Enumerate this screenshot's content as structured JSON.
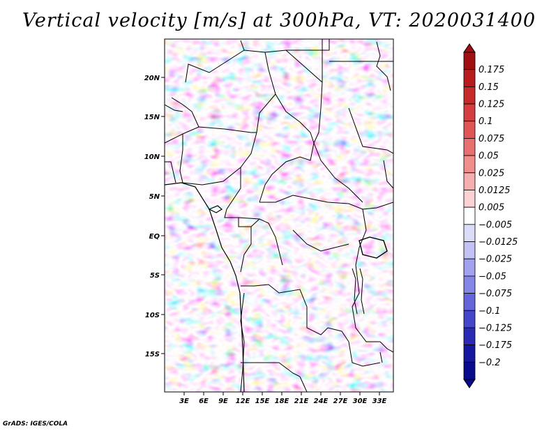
{
  "title": "Vertical velocity [m/s] at 300hPa, VT: 2020031400",
  "credit": "GrADS: IGES/COLA",
  "colors": {
    "positive_dark": "#a01010",
    "positive_mid": "#e27070",
    "positive_light": "#f9d4d4",
    "neutral": "#ffffff",
    "negative_light": "#d8d8f8",
    "negative_mid": "#7878e0",
    "negative_dark": "#0a0a8c",
    "border": "#000000"
  },
  "map": {
    "lat_labels": [
      "20N",
      "15N",
      "10N",
      "5N",
      "EQ",
      "5S",
      "10S",
      "15S"
    ],
    "lon_labels": [
      "3E",
      "6E",
      "9E",
      "12E",
      "15E",
      "18E",
      "21E",
      "24E",
      "27E",
      "30E",
      "33E"
    ]
  },
  "colorbar": {
    "levels": [
      "0.175",
      "0.15",
      "0.125",
      "0.1",
      "0.075",
      "0.05",
      "0.025",
      "0.0125",
      "0.005",
      "−0.005",
      "−0.0125",
      "−0.025",
      "−0.05",
      "−0.075",
      "−0.1",
      "−0.125",
      "−0.175",
      "−0.2"
    ],
    "colors": [
      "#a01010",
      "#b81c1c",
      "#c82a2a",
      "#d43e3e",
      "#de5656",
      "#e87070",
      "#f08e8e",
      "#f6aeae",
      "#fbd2d2",
      "#ffffff",
      "#dcdcf8",
      "#c2c2f4",
      "#a2a2ee",
      "#8686e6",
      "#6666dc",
      "#4646ca",
      "#2a2ab4",
      "#16169e",
      "#0a0a8c"
    ]
  }
}
